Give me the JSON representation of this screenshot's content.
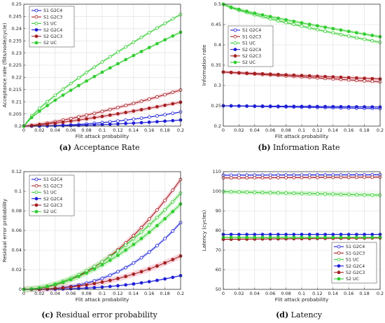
{
  "x": [
    0,
    0.01,
    0.02,
    0.03,
    0.04,
    0.05,
    0.06,
    0.07,
    0.08,
    0.09,
    0.1,
    0.11,
    0.12,
    0.13,
    0.14,
    0.15,
    0.16,
    0.17,
    0.18,
    0.19,
    0.2
  ],
  "xticks": [
    0,
    0.02,
    0.04,
    0.06,
    0.08,
    0.1,
    0.12,
    0.14,
    0.16,
    0.18,
    0.2
  ],
  "chart_data": [
    {
      "type": "line",
      "caption_label": "(a)",
      "caption_text": "Acceptance Rate",
      "xlabel": "Flit attack probability",
      "ylabel": "Acceptance rate (flits/node/cycle)",
      "xlim": [
        0,
        0.2
      ],
      "ylim": [
        0.2,
        0.25
      ],
      "yticks": [
        0.2,
        0.205,
        0.21,
        0.215,
        0.22,
        0.225,
        0.23,
        0.235,
        0.24,
        0.245,
        0.25
      ],
      "grid": true,
      "legend_position": "top-left",
      "series": [
        {
          "name": "S1 G2C4",
          "color": "#1f1fd6",
          "marker": "open",
          "start": 0.2,
          "end": 0.2058,
          "power": 2.0,
          "band": 0.0003
        },
        {
          "name": "S1 G2C3",
          "color": "#a52020",
          "marker": "open",
          "start": 0.2,
          "end": 0.2148,
          "power": 1.3,
          "band": 0.0008
        },
        {
          "name": "S1 UC",
          "color": "#33cc33",
          "marker": "open",
          "start": 0.2,
          "end": 0.2458,
          "power": 0.8,
          "band": 0.0005
        },
        {
          "name": "S2 G2C4",
          "color": "#1f1fd6",
          "marker": "filled",
          "start": 0.2,
          "end": 0.2025,
          "power": 2.0,
          "band": 0.0003
        },
        {
          "name": "S2 G2C3",
          "color": "#a52020",
          "marker": "filled",
          "start": 0.2,
          "end": 0.2098,
          "power": 1.3,
          "band": 0.0008
        },
        {
          "name": "S2 UC",
          "color": "#33cc33",
          "marker": "filled",
          "start": 0.2,
          "end": 0.2385,
          "power": 0.8,
          "band": 0.0005
        }
      ]
    },
    {
      "type": "line",
      "caption_label": "(b)",
      "caption_text": "Information Rate",
      "xlabel": "Flit attack probability",
      "ylabel": "Information rate",
      "xlim": [
        0,
        0.2
      ],
      "ylim": [
        0.2,
        0.5
      ],
      "yticks": [
        0.2,
        0.25,
        0.3,
        0.35,
        0.4,
        0.45,
        0.5
      ],
      "grid": true,
      "legend_position": "center-left",
      "series": [
        {
          "name": "S1 G2C4",
          "color": "#1f1fd6",
          "marker": "open",
          "start": 0.25,
          "end": 0.243,
          "power": 1.0,
          "band": 0.002
        },
        {
          "name": "S1 G2C3",
          "color": "#a52020",
          "marker": "open",
          "start": 0.333,
          "end": 0.309,
          "power": 1.0,
          "band": 0.004
        },
        {
          "name": "S1 UC",
          "color": "#33cc33",
          "marker": "open",
          "start": 0.5,
          "end": 0.406,
          "power": 0.8,
          "band": 0.004
        },
        {
          "name": "S2 G2C4",
          "color": "#1f1fd6",
          "marker": "filled",
          "start": 0.25,
          "end": 0.247,
          "power": 1.0,
          "band": 0.002
        },
        {
          "name": "S2 G2C3",
          "color": "#a52020",
          "marker": "filled",
          "start": 0.333,
          "end": 0.316,
          "power": 1.0,
          "band": 0.004
        },
        {
          "name": "S2 UC",
          "color": "#33cc33",
          "marker": "filled",
          "start": 0.5,
          "end": 0.42,
          "power": 0.8,
          "band": 0.004
        }
      ]
    },
    {
      "type": "line",
      "caption_label": "(c)",
      "caption_text": "Residual error probability",
      "xlabel": "Flit attack probability",
      "ylabel": "Residual error probability",
      "xlim": [
        0,
        0.2
      ],
      "ylim": [
        0,
        0.12
      ],
      "yticks": [
        0,
        0.02,
        0.04,
        0.06,
        0.08,
        0.1,
        0.12
      ],
      "grid": true,
      "legend_position": "top-left",
      "series": [
        {
          "name": "S1 G2C4",
          "color": "#1f1fd6",
          "marker": "open",
          "start": 0,
          "end": 0.068,
          "power": 2.6,
          "band": 0.002
        },
        {
          "name": "S1 G2C3",
          "color": "#a52020",
          "marker": "open",
          "start": 0,
          "end": 0.112,
          "power": 2.0,
          "band": 0.003
        },
        {
          "name": "S1 UC",
          "color": "#33cc33",
          "marker": "open",
          "start": 0,
          "end": 0.098,
          "power": 1.8,
          "band": 0.003
        },
        {
          "name": "S2 G2C4",
          "color": "#1f1fd6",
          "marker": "filled",
          "start": 0,
          "end": 0.014,
          "power": 2.6,
          "band": 0.001
        },
        {
          "name": "S2 G2C3",
          "color": "#a52020",
          "marker": "filled",
          "start": 0,
          "end": 0.034,
          "power": 2.2,
          "band": 0.003
        },
        {
          "name": "S2 UC",
          "color": "#33cc33",
          "marker": "filled",
          "start": 0,
          "end": 0.087,
          "power": 1.8,
          "band": 0.003
        }
      ]
    },
    {
      "type": "line",
      "caption_label": "(d)",
      "caption_text": "Latency",
      "xlabel": "Flit attack probability",
      "ylabel": "Latency (cycles)",
      "xlim": [
        0,
        0.2
      ],
      "ylim": [
        50,
        110
      ],
      "yticks": [
        50,
        60,
        70,
        80,
        90,
        100,
        110
      ],
      "grid": true,
      "legend_position": "bottom-right",
      "series": [
        {
          "name": "S1 G2C4",
          "color": "#1f1fd6",
          "marker": "open",
          "start": 108.2,
          "end": 108.4,
          "power": 1.0,
          "band": 0.6
        },
        {
          "name": "S1 G2C3",
          "color": "#a52020",
          "marker": "open",
          "start": 106.8,
          "end": 107.2,
          "power": 1.0,
          "band": 0.6
        },
        {
          "name": "S1 UC",
          "color": "#33cc33",
          "marker": "open",
          "start": 99.8,
          "end": 98.0,
          "power": 1.0,
          "band": 1.2
        },
        {
          "name": "S2 G2C4",
          "color": "#1f1fd6",
          "marker": "filled",
          "start": 78.0,
          "end": 78.0,
          "power": 1.0,
          "band": 0.4
        },
        {
          "name": "S2 G2C3",
          "color": "#a52020",
          "marker": "filled",
          "start": 75.5,
          "end": 76.2,
          "power": 1.0,
          "band": 0.5
        },
        {
          "name": "S2 UC",
          "color": "#33cc33",
          "marker": "filled",
          "start": 76.5,
          "end": 76.5,
          "power": 1.0,
          "band": 0.5
        }
      ]
    }
  ]
}
